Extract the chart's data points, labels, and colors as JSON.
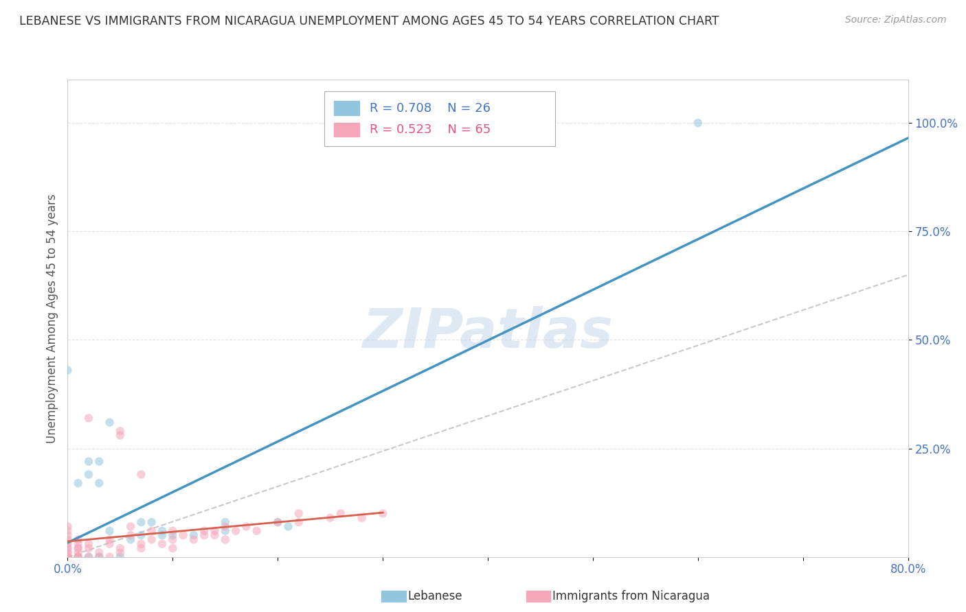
{
  "title": "LEBANESE VS IMMIGRANTS FROM NICARAGUA UNEMPLOYMENT AMONG AGES 45 TO 54 YEARS CORRELATION CHART",
  "source": "Source: ZipAtlas.com",
  "ylabel": "Unemployment Among Ages 45 to 54 years",
  "xlim": [
    0.0,
    0.8
  ],
  "ylim": [
    0.0,
    1.1
  ],
  "xticks": [
    0.0,
    0.1,
    0.2,
    0.3,
    0.4,
    0.5,
    0.6,
    0.7,
    0.8
  ],
  "xticklabels": [
    "0.0%",
    "",
    "",
    "",
    "",
    "",
    "",
    "",
    "80.0%"
  ],
  "ytick_positions": [
    0.25,
    0.5,
    0.75,
    1.0
  ],
  "yticklabels": [
    "25.0%",
    "50.0%",
    "75.0%",
    "100.0%"
  ],
  "legend1_r": "0.708",
  "legend1_n": "26",
  "legend2_r": "0.523",
  "legend2_n": "65",
  "series1_name": "Lebanese",
  "series2_name": "Immigrants from Nicaragua",
  "series1_color": "#92c5de",
  "series2_color": "#f4a7b9",
  "series1_line_color": "#4393c3",
  "series2_line_color": "#d6604d",
  "ref_line_color": "#c8c8c8",
  "watermark": "ZIPatlas",
  "series1_x": [
    0.0,
    0.0,
    0.01,
    0.01,
    0.02,
    0.02,
    0.02,
    0.03,
    0.03,
    0.03,
    0.04,
    0.04,
    0.05,
    0.06,
    0.07,
    0.07,
    0.08,
    0.09,
    0.09,
    0.1,
    0.12,
    0.15,
    0.15,
    0.2,
    0.21,
    0.6
  ],
  "series1_y": [
    0.0,
    0.43,
    0.0,
    0.17,
    0.0,
    0.19,
    0.22,
    0.0,
    0.17,
    0.22,
    0.06,
    0.31,
    0.0,
    0.04,
    0.05,
    0.08,
    0.08,
    0.05,
    0.06,
    0.05,
    0.05,
    0.06,
    0.08,
    0.08,
    0.07,
    1.0
  ],
  "series2_x": [
    0.0,
    0.0,
    0.0,
    0.0,
    0.0,
    0.0,
    0.0,
    0.0,
    0.0,
    0.0,
    0.0,
    0.0,
    0.0,
    0.0,
    0.0,
    0.0,
    0.01,
    0.01,
    0.01,
    0.01,
    0.01,
    0.01,
    0.01,
    0.02,
    0.02,
    0.02,
    0.02,
    0.03,
    0.03,
    0.04,
    0.04,
    0.04,
    0.05,
    0.05,
    0.05,
    0.05,
    0.06,
    0.06,
    0.07,
    0.07,
    0.07,
    0.08,
    0.08,
    0.09,
    0.1,
    0.1,
    0.1,
    0.11,
    0.12,
    0.13,
    0.13,
    0.14,
    0.14,
    0.15,
    0.15,
    0.16,
    0.17,
    0.18,
    0.2,
    0.22,
    0.22,
    0.25,
    0.26,
    0.28,
    0.3
  ],
  "series2_y": [
    0.0,
    0.0,
    0.0,
    0.0,
    0.0,
    0.0,
    0.01,
    0.01,
    0.02,
    0.02,
    0.03,
    0.03,
    0.04,
    0.05,
    0.06,
    0.07,
    0.0,
    0.0,
    0.01,
    0.02,
    0.02,
    0.03,
    0.04,
    0.0,
    0.02,
    0.03,
    0.32,
    0.0,
    0.01,
    0.0,
    0.03,
    0.04,
    0.01,
    0.02,
    0.28,
    0.29,
    0.05,
    0.07,
    0.02,
    0.03,
    0.19,
    0.04,
    0.06,
    0.03,
    0.02,
    0.04,
    0.06,
    0.05,
    0.04,
    0.05,
    0.06,
    0.05,
    0.06,
    0.04,
    0.07,
    0.06,
    0.07,
    0.06,
    0.08,
    0.08,
    0.1,
    0.09,
    0.1,
    0.09,
    0.1
  ],
  "background_color": "#ffffff",
  "grid_color": "#dddddd",
  "marker_size": 80,
  "marker_alpha": 0.55,
  "figsize": [
    14.06,
    8.92
  ],
  "dpi": 100
}
